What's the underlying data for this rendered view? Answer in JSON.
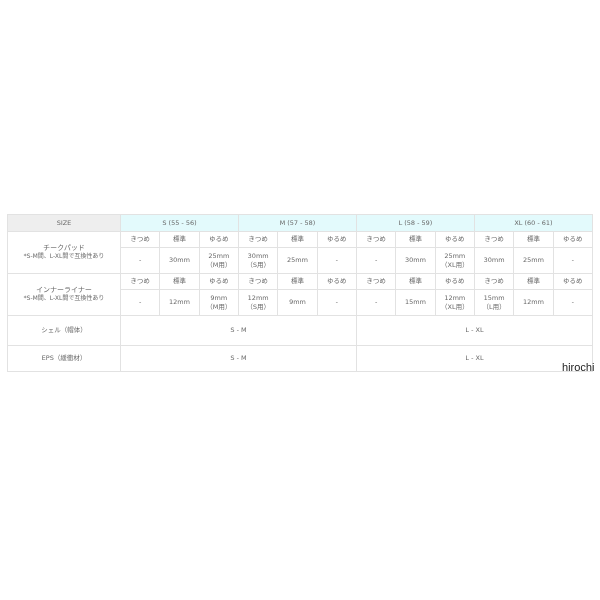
{
  "header": {
    "label": "SIZE",
    "sizes": [
      "S (55 - 56)",
      "M (57 - 58)",
      "L (58 - 59)",
      "XL (60 - 61)"
    ]
  },
  "fit_labels": [
    "きつめ",
    "標準",
    "ゆるめ"
  ],
  "cheek_pad": {
    "label": "チークパッド",
    "note": "*S-M間、L-XL間で互換性あり",
    "values": [
      [
        "-"
      ],
      [
        "30mm"
      ],
      [
        "25mm",
        "（M用）"
      ],
      [
        "30mm",
        "（S用）"
      ],
      [
        "25mm"
      ],
      [
        "-"
      ],
      [
        "-"
      ],
      [
        "30mm"
      ],
      [
        "25mm",
        "（XL用）"
      ],
      [
        "30mm"
      ],
      [
        "25mm"
      ],
      [
        "-"
      ]
    ]
  },
  "inner_liner": {
    "label": "インナーライナー",
    "note": "*S-M間、L-XL間で互換性あり",
    "values": [
      [
        "-"
      ],
      [
        "12mm"
      ],
      [
        "9mm",
        "（M用）"
      ],
      [
        "12mm",
        "（S用）"
      ],
      [
        "9mm"
      ],
      [
        "-"
      ],
      [
        "-"
      ],
      [
        "15mm"
      ],
      [
        "12mm",
        "（XL用）"
      ],
      [
        "15mm",
        "（L用）"
      ],
      [
        "12mm"
      ],
      [
        "-"
      ]
    ]
  },
  "shell": {
    "label": "シェル（帽体）",
    "values": [
      "S - M",
      "L - XL"
    ]
  },
  "eps": {
    "label": "EPS（緩衝材）",
    "values": [
      "S - M",
      "L - XL"
    ]
  },
  "watermark": "hirochi"
}
